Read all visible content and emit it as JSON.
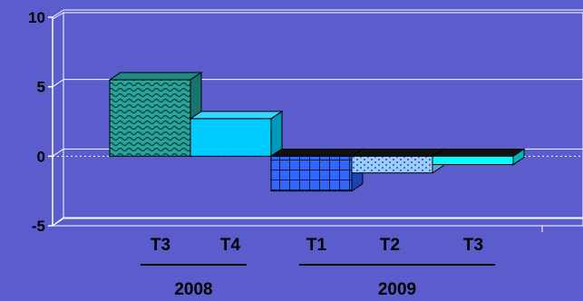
{
  "chart_data": {
    "type": "bar",
    "title": "",
    "xlabel": "",
    "ylabel": "",
    "ylim": [
      -5,
      10
    ],
    "yticks": [
      "10",
      "5",
      "0",
      "-5"
    ],
    "categories": [
      "T3",
      "T4",
      "T1",
      "T2",
      "T3"
    ],
    "groups": [
      {
        "label": "2008",
        "categories": [
          "T3",
          "T4"
        ]
      },
      {
        "label": "2009",
        "categories": [
          "T1",
          "T2",
          "T3"
        ]
      }
    ],
    "values": [
      5.5,
      2.7,
      -2.5,
      -1.2,
      -0.6
    ],
    "grid": true,
    "legend": false,
    "colors": {
      "background": "#5b5dcd",
      "axis": "#ffffff",
      "gridline": "#ffffff",
      "bar_T3_2008": "#2aa39a",
      "bar_T4_2008": "#00ccff",
      "bar_T1_2009": "#3366ff",
      "bar_T2_2009": "#99ccff",
      "bar_T3_2009": "#00ffff",
      "group_underline": "#000000"
    }
  }
}
